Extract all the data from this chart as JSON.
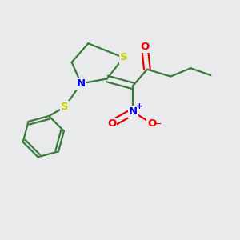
{
  "bg_color": "#e8eaec",
  "atom_colors": {
    "S": "#cccc00",
    "N": "#0000ee",
    "O": "#ee0000",
    "C": "#3a7a3a",
    "bond": "#3a7a3a"
  },
  "figsize": [
    3.0,
    3.0
  ],
  "dpi": 100
}
